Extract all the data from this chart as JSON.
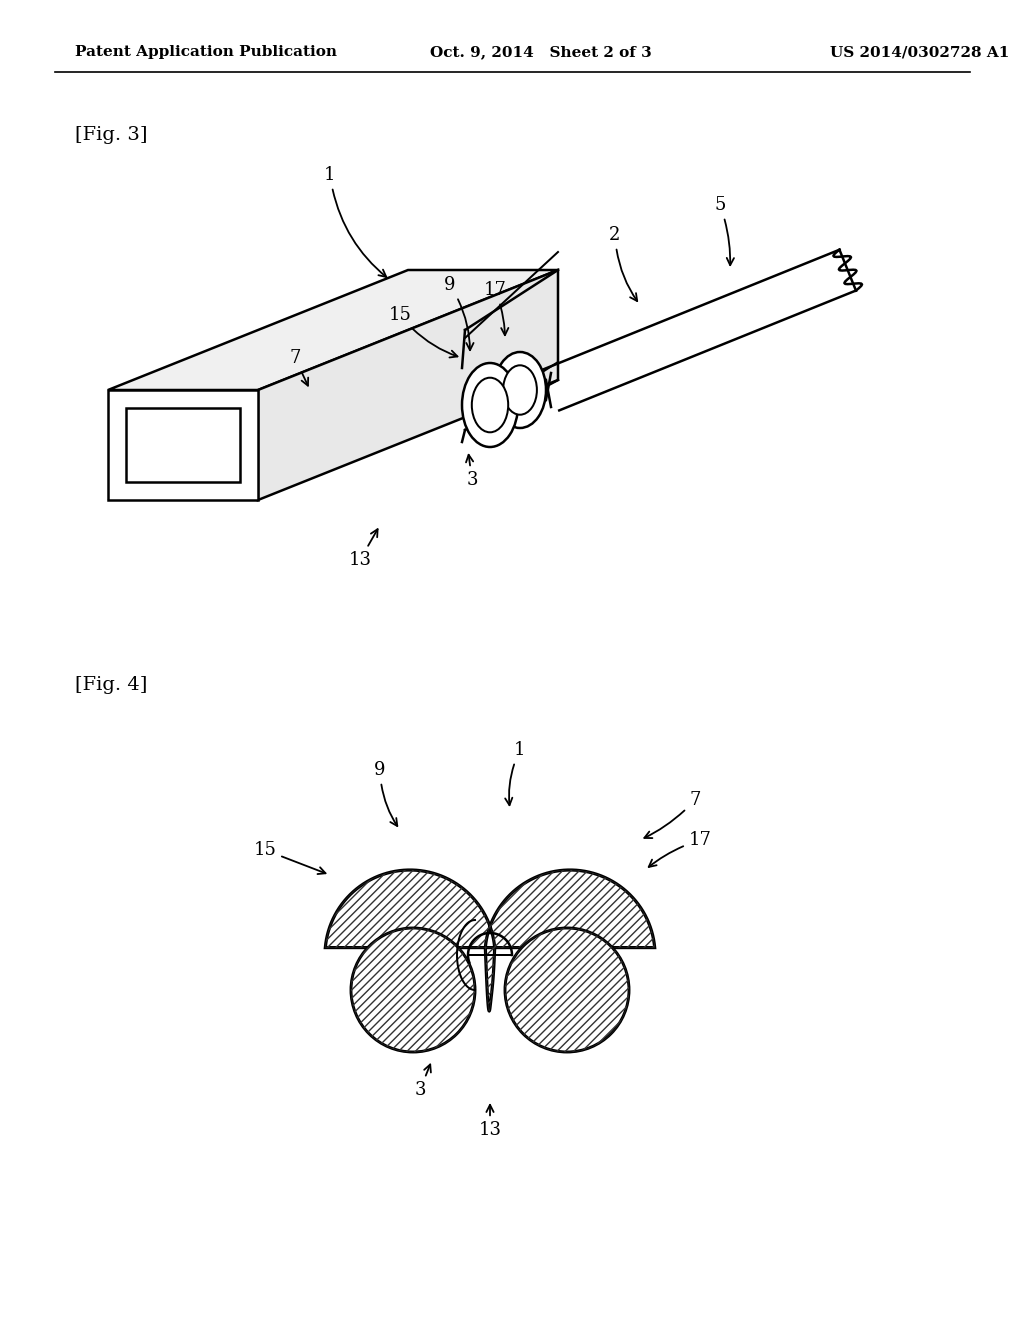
{
  "header_left": "Patent Application Publication",
  "header_mid": "Oct. 9, 2014   Sheet 2 of 3",
  "header_right": "US 2014/0302728 A1",
  "fig3_label": "[Fig. 3]",
  "fig4_label": "[Fig. 4]",
  "background_color": "#ffffff",
  "line_color": "#000000"
}
